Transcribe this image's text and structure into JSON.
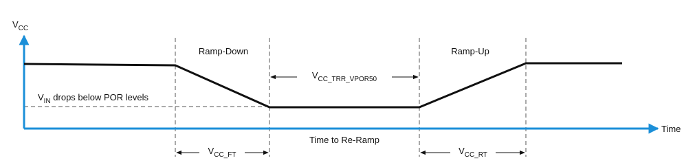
{
  "axes": {
    "y_label": {
      "main": "V",
      "sub": "CC"
    },
    "x_label": "Time"
  },
  "phases": {
    "ramp_down": "Ramp-Down",
    "ramp_up": "Ramp-Up"
  },
  "intervals": {
    "trr": {
      "main": "V",
      "sub": "CC_TRR_VPOR50"
    },
    "re_ramp": "Time to Re-Ramp",
    "ft": {
      "main": "V",
      "sub": "CC_FT"
    },
    "rt": {
      "main": "V",
      "sub": "CC_RT"
    }
  },
  "threshold": {
    "main": "V",
    "sub": "IN",
    "rest": " drops below POR levels"
  }
}
